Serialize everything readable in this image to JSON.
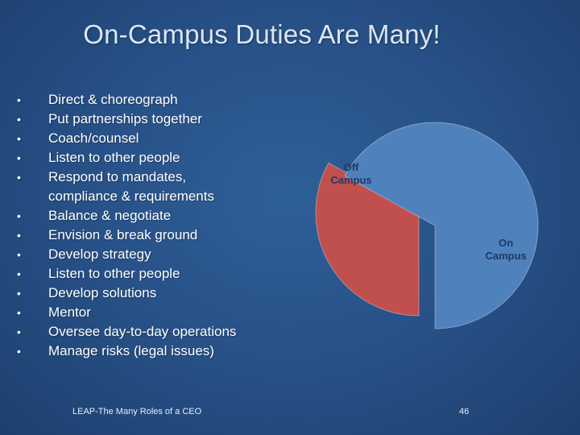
{
  "slide": {
    "title": "On-Campus Duties Are Many!",
    "bullets": [
      "Direct & choreograph",
      "Put partnerships together",
      "Coach/counsel",
      "Listen to other people",
      "Respond to mandates,",
      "compliance & requirements",
      "Balance & negotiate",
      "Envision & break ground",
      "Develop strategy",
      "Listen to other people",
      "Develop solutions",
      "Mentor",
      "Oversee day-to-day operations",
      "Manage risks (legal issues)"
    ],
    "footer_text": "LEAP-The Many Roles of a CEO",
    "page_number": "46"
  },
  "chart_data": {
    "type": "pie",
    "categories": [
      "Off Campus",
      "On Campus"
    ],
    "labels": [
      [
        "Off",
        "Campus"
      ],
      [
        "On",
        "Campus"
      ]
    ],
    "values": [
      33,
      67
    ],
    "colors": [
      "#c0504d",
      "#4f81bd"
    ],
    "label_color": "#1f3a63"
  }
}
